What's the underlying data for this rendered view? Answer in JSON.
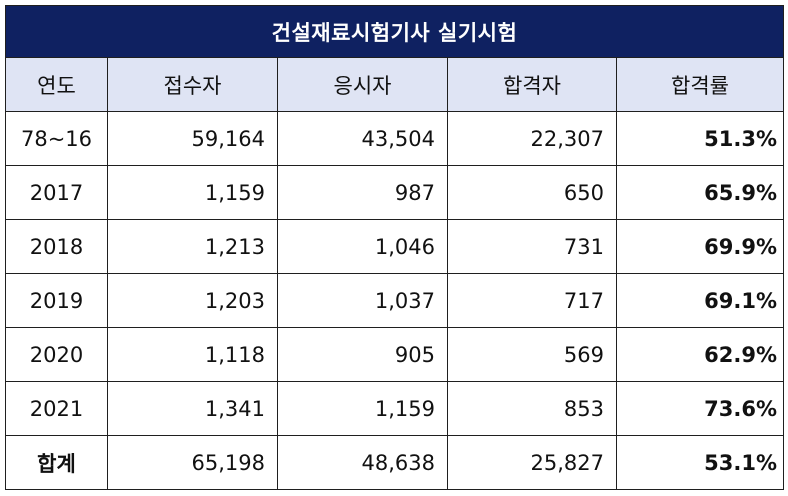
{
  "title": "건설재료시험기사 실기시험",
  "headers": [
    "연도",
    "접수자",
    "응시자",
    "합격자",
    "합격률"
  ],
  "rows": [
    {
      "year": "78~16",
      "applicants": "59,164",
      "examinees": "43,504",
      "passers": "22,307",
      "rate": "51.3%"
    },
    {
      "year": "2017",
      "applicants": "1,159",
      "examinees": "987",
      "passers": "650",
      "rate": "65.9%"
    },
    {
      "year": "2018",
      "applicants": "1,213",
      "examinees": "1,046",
      "passers": "731",
      "rate": "69.9%"
    },
    {
      "year": "2019",
      "applicants": "1,203",
      "examinees": "1,037",
      "passers": "717",
      "rate": "69.1%"
    },
    {
      "year": "2020",
      "applicants": "1,118",
      "examinees": "905",
      "passers": "569",
      "rate": "62.9%"
    },
    {
      "year": "2021",
      "applicants": "1,341",
      "examinees": "1,159",
      "passers": "853",
      "rate": "73.6%"
    }
  ],
  "total": {
    "label": "합계",
    "applicants": "65,198",
    "examinees": "48,638",
    "passers": "25,827",
    "rate": "53.1%"
  },
  "colors": {
    "title_bg": "#0f2161",
    "header_bg": "#dfe4f4"
  }
}
